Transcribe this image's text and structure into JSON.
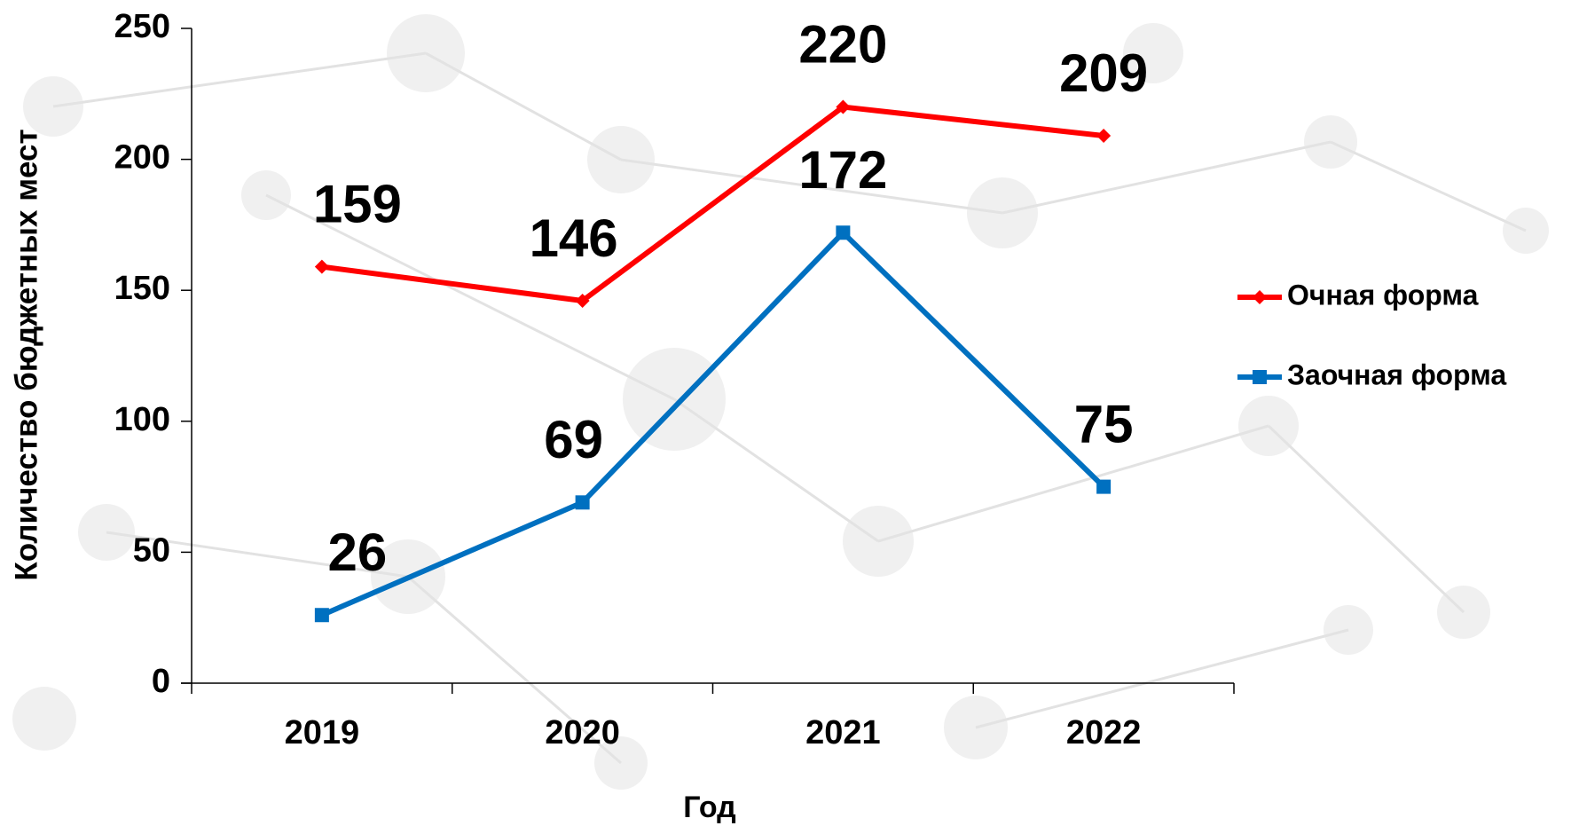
{
  "chart_data": {
    "type": "line",
    "x_label": "Год",
    "y_label": "Количество бюджетных мест",
    "categories": [
      "2019",
      "2020",
      "2021",
      "2022"
    ],
    "series": [
      {
        "name": "Очная форма",
        "color": "#ff0000",
        "marker": "diamond",
        "values": [
          159,
          146,
          220,
          209
        ]
      },
      {
        "name": "Заочная форма",
        "color": "#0070c0",
        "marker": "square",
        "values": [
          26,
          69,
          172,
          75
        ]
      }
    ],
    "ylim": [
      0,
      250
    ],
    "yticks": [
      0,
      50,
      100,
      150,
      200,
      250
    ],
    "legend": "right",
    "grid": false
  }
}
